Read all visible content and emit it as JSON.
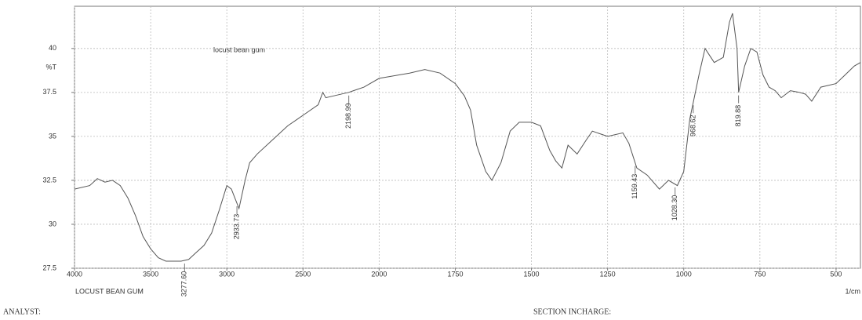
{
  "chart_data": {
    "type": "line",
    "title": "locust bean gum",
    "sample_label": "LOCUST BEAN GUM",
    "y_label": "%T",
    "x_label": "1/cm",
    "x": [
      4000,
      3900,
      3850,
      3800,
      3750,
      3700,
      3650,
      3600,
      3550,
      3500,
      3450,
      3400,
      3300,
      3250,
      3200,
      3150,
      3100,
      3050,
      3000,
      2970,
      2920,
      2880,
      2850,
      2800,
      2700,
      2600,
      2500,
      2400,
      2370,
      2350,
      2300,
      2200,
      2168,
      2100,
      2000,
      1900,
      1850,
      1800,
      1750,
      1720,
      1700,
      1680,
      1650,
      1630,
      1600,
      1570,
      1540,
      1500,
      1470,
      1440,
      1420,
      1400,
      1380,
      1350,
      1320,
      1300,
      1250,
      1200,
      1180,
      1154,
      1120,
      1080,
      1050,
      1021,
      1000,
      980,
      968,
      950,
      930,
      900,
      870,
      850,
      840,
      825,
      820,
      800,
      780,
      760,
      740,
      720,
      700,
      680,
      650,
      620,
      600,
      580,
      550,
      500,
      470,
      440,
      420
    ],
    "series": [
      {
        "name": "locust bean gum",
        "color": "#555555",
        "values": [
          32.0,
          32.2,
          32.6,
          32.4,
          32.5,
          32.2,
          31.5,
          30.5,
          29.3,
          28.6,
          28.1,
          27.9,
          27.9,
          28.0,
          28.4,
          28.8,
          29.5,
          30.8,
          32.2,
          32.0,
          30.9,
          32.5,
          33.5,
          34.0,
          34.8,
          35.6,
          36.2,
          36.8,
          37.5,
          37.2,
          37.3,
          37.5,
          37.6,
          37.8,
          38.3,
          38.6,
          38.8,
          38.6,
          38.0,
          37.3,
          36.5,
          34.5,
          33.0,
          32.5,
          33.5,
          35.3,
          35.8,
          35.8,
          35.6,
          34.2,
          33.6,
          33.2,
          34.5,
          34.0,
          34.8,
          35.3,
          35.0,
          35.2,
          34.6,
          33.2,
          32.8,
          32.0,
          32.5,
          32.2,
          33.0,
          36.0,
          37.0,
          38.5,
          40.0,
          39.2,
          39.5,
          41.5,
          42.0,
          40.0,
          37.5,
          39.0,
          40.0,
          39.8,
          38.5,
          37.8,
          37.6,
          37.2,
          37.6,
          37.5,
          37.4,
          37.0,
          37.8,
          38.0,
          38.5,
          39.0,
          39.2
        ]
      }
    ],
    "peaks": [
      {
        "label": "3277.60",
        "x": 3277.6
      },
      {
        "label": "2933.73",
        "x": 2933.73
      },
      {
        "label": "2198.99",
        "x": 2198.99
      },
      {
        "label": "1159.43",
        "x": 1159.43
      },
      {
        "label": "1028.30",
        "x": 1028.3
      },
      {
        "label": "968.62",
        "x": 968.62
      },
      {
        "label": "819.88",
        "x": 819.88
      }
    ],
    "xlim": [
      4000,
      420
    ],
    "x_break": 2000,
    "x_scale_ratio": 2,
    "xticks": [
      4000,
      3500,
      3000,
      2500,
      2000,
      1750,
      1500,
      1250,
      1000,
      750,
      500
    ],
    "ylim": [
      27.5,
      42.4
    ],
    "yticks": [
      27.5,
      30,
      32.5,
      35,
      37.5,
      40
    ],
    "grid": true,
    "footer_left": "ANALYST:",
    "footer_right": "SECTION INCHARGE:"
  }
}
